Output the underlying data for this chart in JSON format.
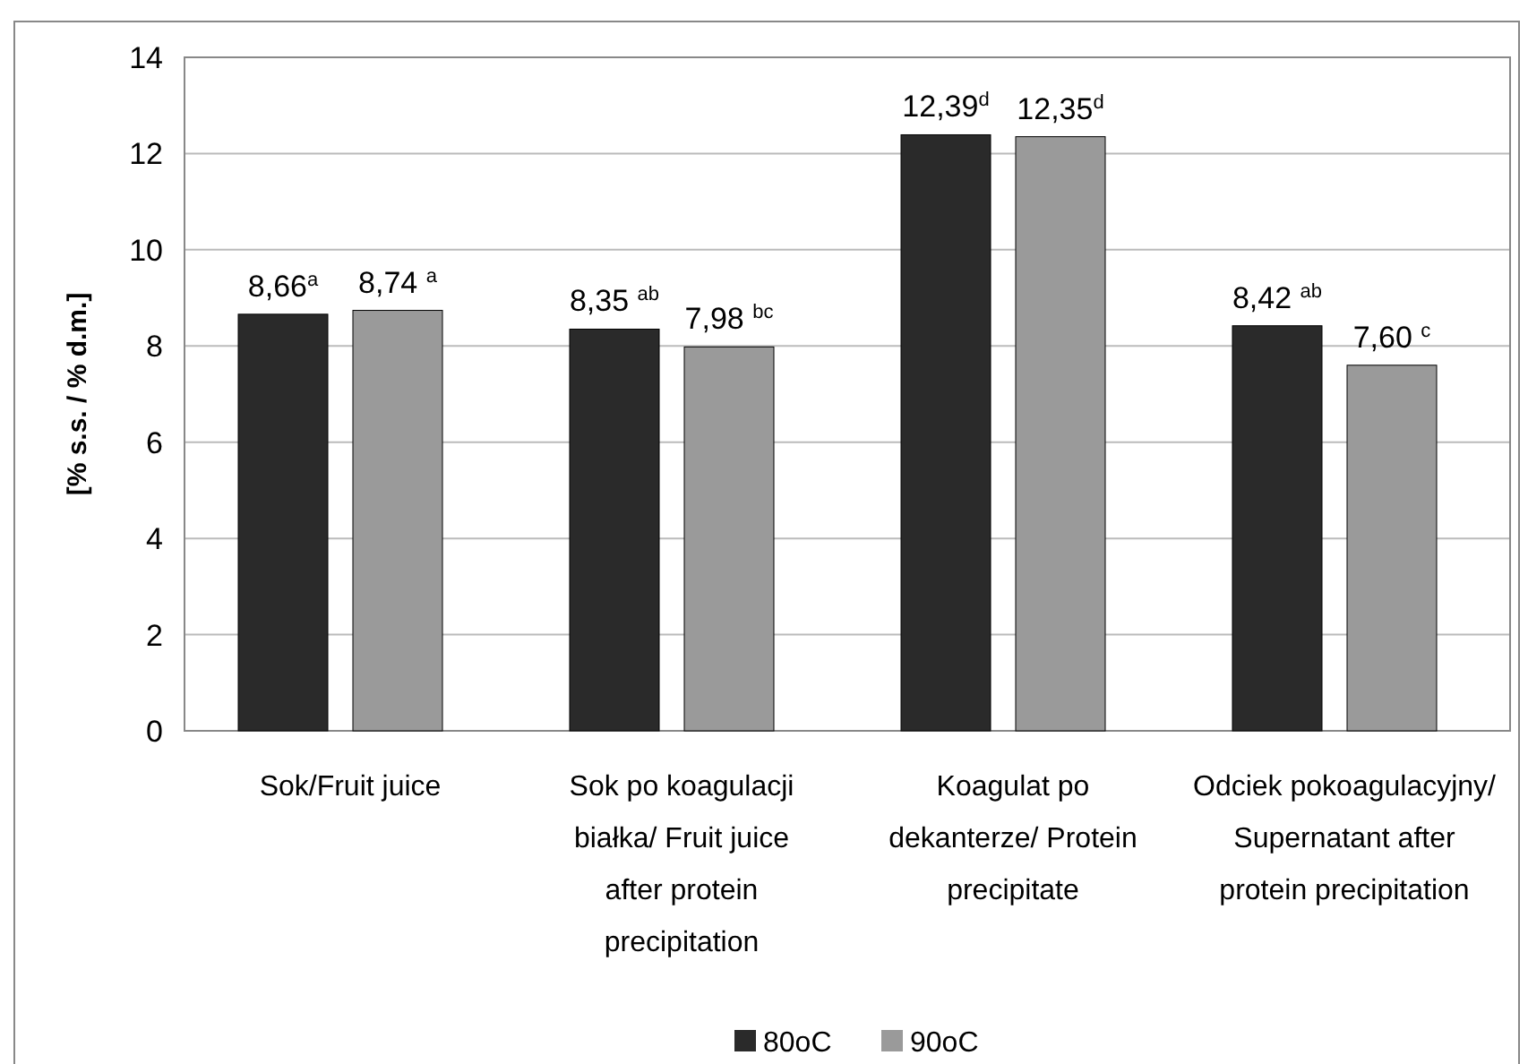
{
  "chart_data": {
    "type": "bar",
    "ylabel": "[% s.s. / % d.m.]",
    "categories": [
      "Sok/Fruit juice",
      "Sok po koagulacji białka/ Fruit juice after protein precipitation",
      "Koagulat po dekanterze/ Protein precipitate",
      "Odciek pokoagulacyjny/ Supernatant after protein precipitation"
    ],
    "series": [
      {
        "name": "80oC",
        "color": "#2a2a2a",
        "values": [
          8.66,
          8.35,
          12.39,
          8.42
        ],
        "value_labels": [
          "8,66$^{a}$",
          "8,35 $^{ab}$",
          "12,39$^{d}$",
          "8,42 $^{ab}$"
        ]
      },
      {
        "name": "90oC",
        "color": "#9a9a9a",
        "values": [
          8.74,
          7.98,
          12.35,
          7.6
        ],
        "value_labels": [
          "8,74 $^{a}$",
          "7,98 $^{bc}$",
          "12,35$^{d}$",
          "7,60 $^{c}$"
        ]
      }
    ],
    "ylim": [
      0,
      14
    ],
    "yticks": [
      0,
      2,
      4,
      6,
      8,
      10,
      12,
      14
    ],
    "grid": "y",
    "legend": "bottom"
  }
}
